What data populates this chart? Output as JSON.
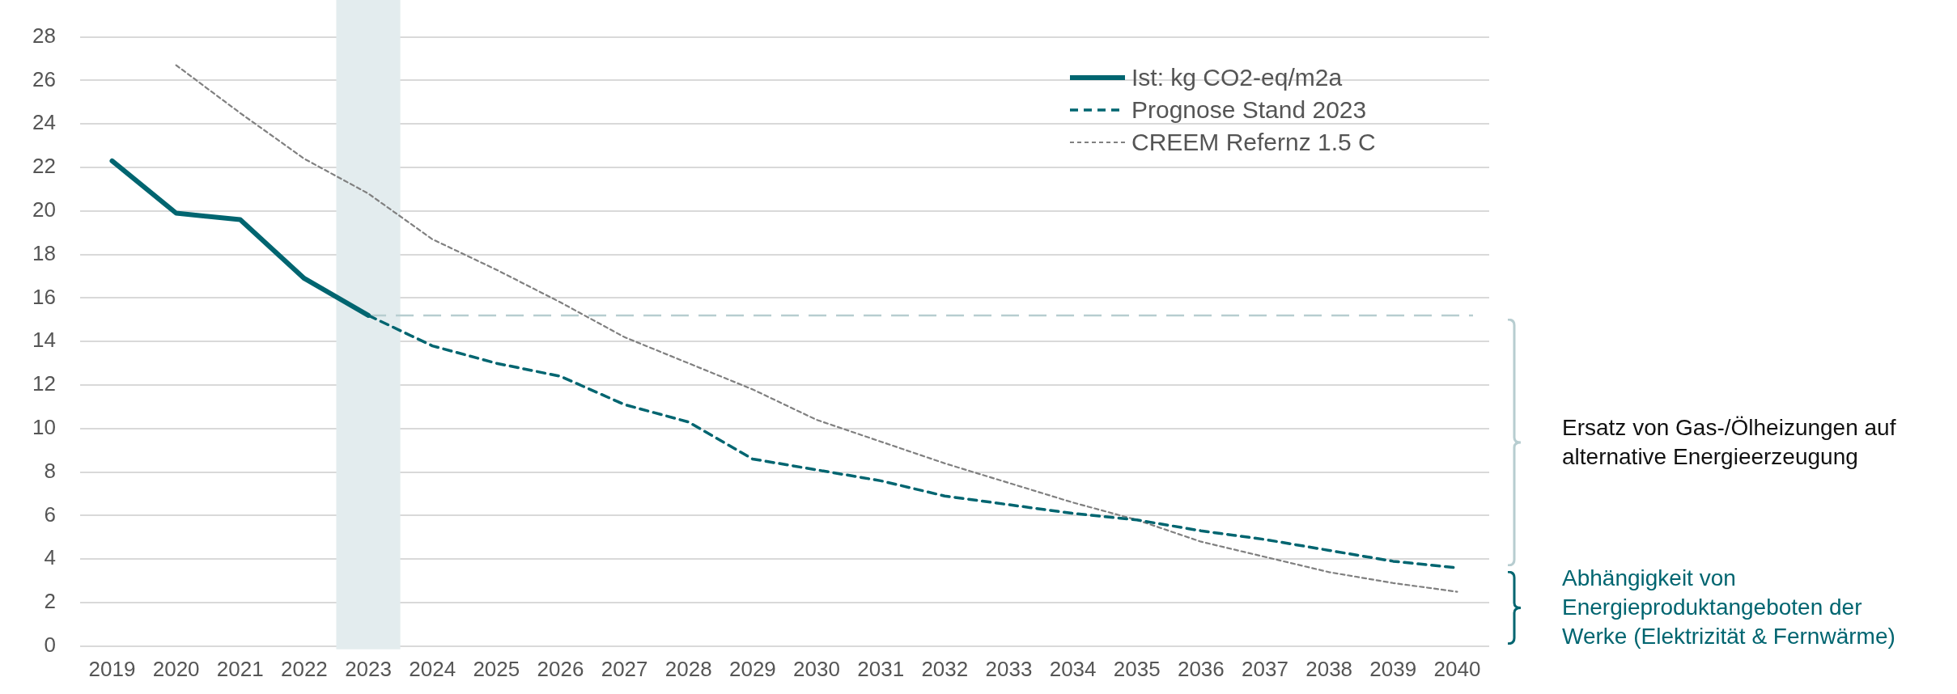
{
  "chart_data": {
    "type": "line",
    "categories": [
      "2019",
      "2020",
      "2021",
      "2022",
      "2023",
      "2024",
      "2025",
      "2026",
      "2027",
      "2028",
      "2029",
      "2030",
      "2031",
      "2032",
      "2033",
      "2034",
      "2035",
      "2036",
      "2037",
      "2038",
      "2039",
      "2040"
    ],
    "series": [
      {
        "name": "Ist: kg CO2-eq/m2a",
        "color": "#006570",
        "line_style": "solid",
        "values": [
          22.3,
          19.9,
          19.6,
          16.9,
          15.2,
          null,
          null,
          null,
          null,
          null,
          null,
          null,
          null,
          null,
          null,
          null,
          null,
          null,
          null,
          null,
          null,
          null
        ]
      },
      {
        "name": "Prognose Stand 2023",
        "color": "#006570",
        "line_style": "dashed",
        "values": [
          null,
          null,
          null,
          null,
          15.2,
          13.8,
          13.0,
          12.4,
          11.1,
          10.3,
          8.6,
          8.1,
          7.6,
          6.9,
          6.5,
          6.1,
          5.8,
          5.3,
          4.9,
          4.4,
          3.9,
          3.6
        ]
      },
      {
        "name": "CREEM Refernz 1.5 C",
        "color": "#808080",
        "line_style": "dotted",
        "values": [
          null,
          26.7,
          24.5,
          22.4,
          20.8,
          18.7,
          17.3,
          15.8,
          14.2,
          13.0,
          11.8,
          10.4,
          9.4,
          8.4,
          7.5,
          6.6,
          5.8,
          4.8,
          4.1,
          3.4,
          2.9,
          2.5
        ]
      }
    ],
    "ylim": [
      0,
      28
    ],
    "yticks": [
      0,
      2,
      4,
      6,
      8,
      10,
      12,
      14,
      16,
      18,
      20,
      22,
      24,
      26,
      28
    ],
    "grid": "y",
    "legend": "top right",
    "marker": "none",
    "ref_lines": [
      {
        "axis": "y",
        "value": 15.2,
        "color": "#b7cdd0",
        "line_style": "dashed"
      }
    ],
    "bands": [
      {
        "axis": "x",
        "from": "2023",
        "to": "2023",
        "color": "#e3ecee"
      }
    ],
    "annotations": [
      "Ersatz von Gas-/Ölheizungen auf alternative Energieerzeugung",
      "Abhängigkeit von Energieproduktangeboten der Werke (Elektrizität & Fernwärme)"
    ]
  }
}
